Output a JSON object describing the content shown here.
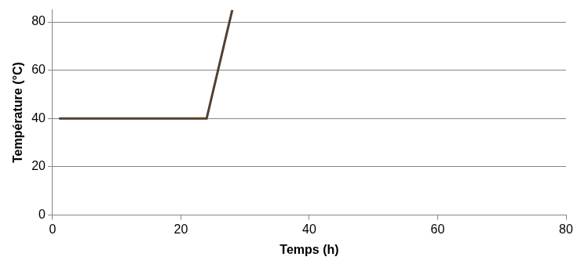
{
  "chart_data": {
    "type": "line",
    "x_label": "Temps (h)",
    "y_label": "Température (°C)",
    "x": [
      1,
      24,
      28
    ],
    "values": [
      40,
      40,
      85
    ],
    "color": "#54402e",
    "xlim": [
      0,
      80
    ],
    "xticks": [
      0,
      20,
      40,
      60,
      80
    ],
    "ylim": [
      0,
      85
    ],
    "yticks": [
      0,
      20,
      40,
      60,
      80
    ],
    "grid": true
  }
}
